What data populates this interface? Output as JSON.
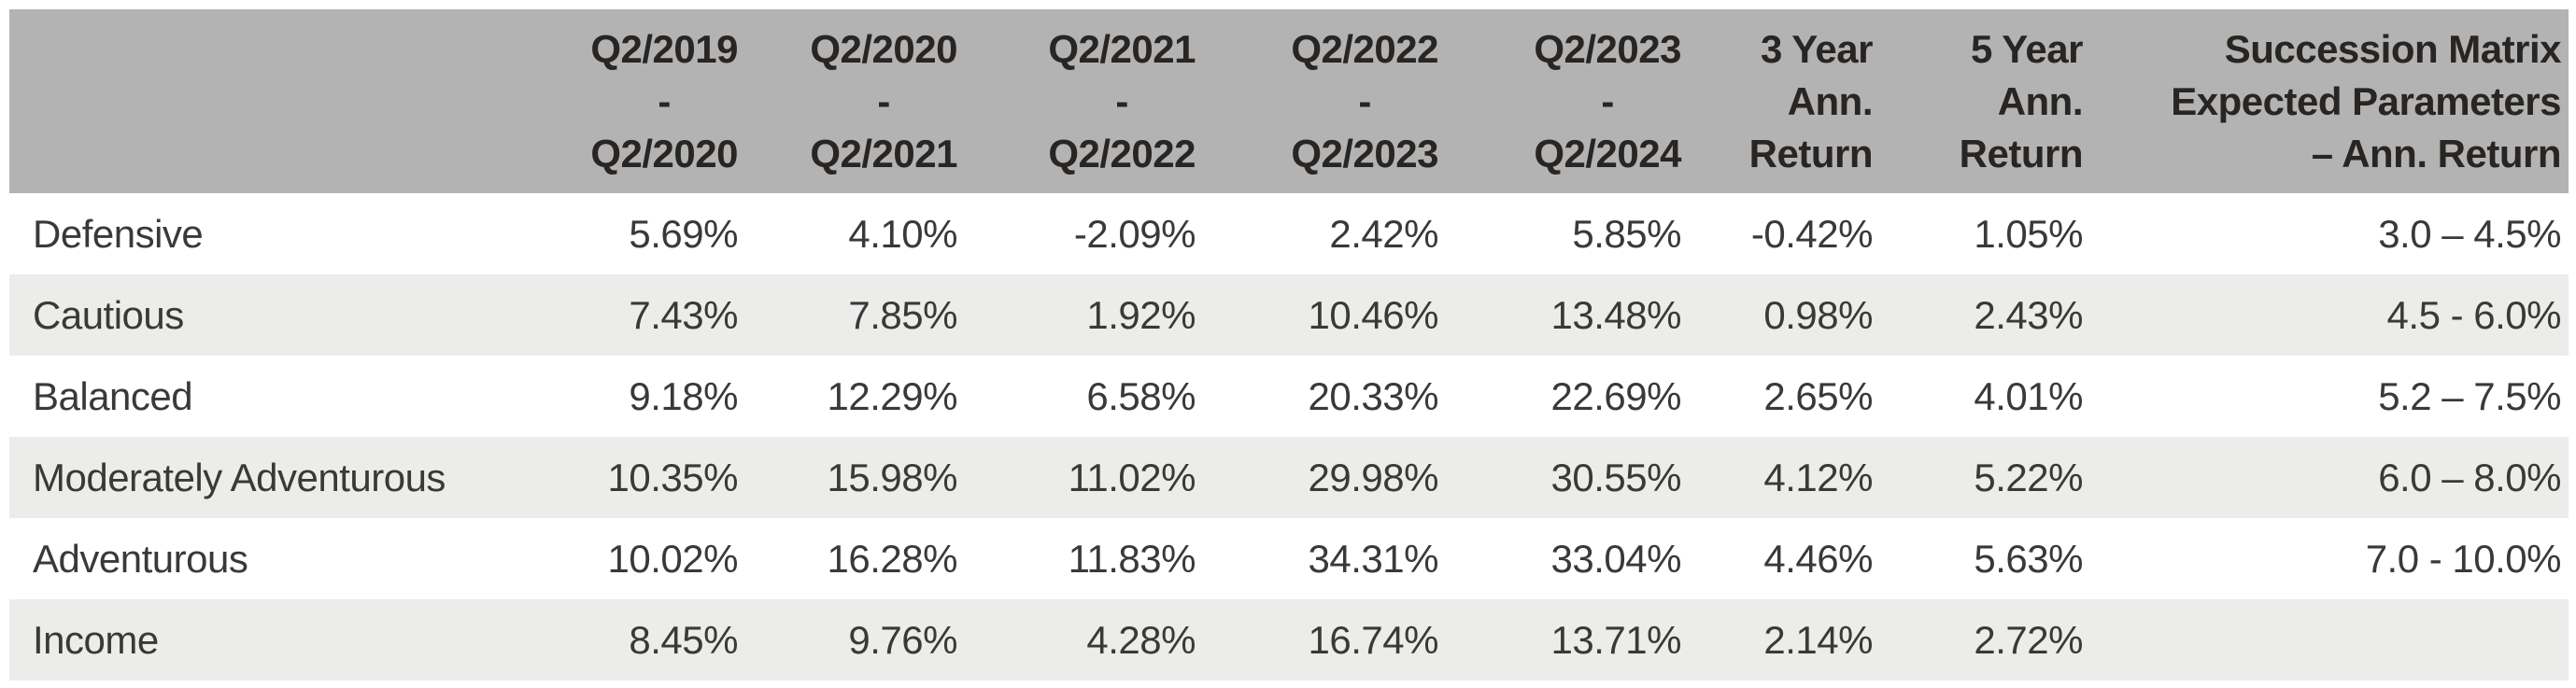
{
  "table": {
    "header": {
      "corner": "",
      "periods": [
        {
          "from": "Q2/2019",
          "sep": "-",
          "to": "Q2/2020"
        },
        {
          "from": "Q2/2020",
          "sep": "-",
          "to": "Q2/2021"
        },
        {
          "from": "Q2/2021",
          "sep": "-",
          "to": "Q2/2022"
        },
        {
          "from": "Q2/2022",
          "sep": "-",
          "to": "Q2/2023"
        },
        {
          "from": "Q2/2023",
          "sep": "-",
          "to": "Q2/2024"
        }
      ],
      "ann3": {
        "l1": "3 Year",
        "l2": "Ann.",
        "l3": "Return"
      },
      "ann5": {
        "l1": "5 Year",
        "l2": "Ann.",
        "l3": "Return"
      },
      "succession": {
        "l1": "Succession Matrix",
        "l2": "Expected Parameters",
        "l3": "– Ann. Return"
      }
    },
    "rows": [
      {
        "label": "Defensive",
        "v0": "5.69%",
        "v1": "4.10%",
        "v2": "-2.09%",
        "v3": "2.42%",
        "v4": "5.85%",
        "v5": "-0.42%",
        "v6": "1.05%",
        "v7": "3.0 – 4.5%"
      },
      {
        "label": "Cautious",
        "v0": "7.43%",
        "v1": "7.85%",
        "v2": "1.92%",
        "v3": "10.46%",
        "v4": "13.48%",
        "v5": "0.98%",
        "v6": "2.43%",
        "v7": "4.5 - 6.0%"
      },
      {
        "label": "Balanced",
        "v0": "9.18%",
        "v1": "12.29%",
        "v2": "6.58%",
        "v3": "20.33%",
        "v4": "22.69%",
        "v5": "2.65%",
        "v6": "4.01%",
        "v7": "5.2 – 7.5%"
      },
      {
        "label": "Moderately Adventurous",
        "v0": "10.35%",
        "v1": "15.98%",
        "v2": "11.02%",
        "v3": "29.98%",
        "v4": "30.55%",
        "v5": "4.12%",
        "v6": "5.22%",
        "v7": "6.0 – 8.0%"
      },
      {
        "label": "Adventurous",
        "v0": "10.02%",
        "v1": "16.28%",
        "v2": "11.83%",
        "v3": "34.31%",
        "v4": "33.04%",
        "v5": "4.46%",
        "v6": "5.63%",
        "v7": "7.0 - 10.0%"
      },
      {
        "label": "Income",
        "v0": "8.45%",
        "v1": "9.76%",
        "v2": "4.28%",
        "v3": "16.74%",
        "v4": "13.71%",
        "v5": "2.14%",
        "v6": "2.72%",
        "v7": ""
      }
    ]
  },
  "colors": {
    "header_bg": "#b4b3b3",
    "stripe_bg": "#ececeb",
    "row_bg": "#ffffff",
    "header_text": "#282522",
    "body_text": "#3b3938"
  }
}
